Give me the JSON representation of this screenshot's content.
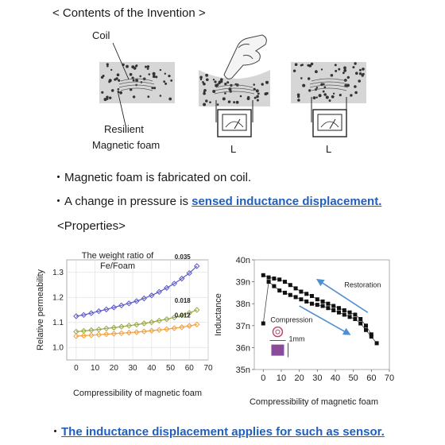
{
  "header": {
    "section_title": "< Contents of the Invention >"
  },
  "diagram": {
    "coil_label": "Coil",
    "foam_label_line1": "Resilient",
    "foam_label_line2": "Magnetic foam",
    "meter1_label": "L",
    "meter2_label": "L"
  },
  "bullets": {
    "b1": "Magnetic foam is fabricated on coil.",
    "b2_prefix": "A change in pressure is ",
    "b2_link": "sensed inductance displacement.",
    "properties_heading": "<Properties>",
    "b3_link": "The inductance displacement applies for such as sensor."
  },
  "colors": {
    "link": "#1f5fbf",
    "foam": "#d6d6d6",
    "arrow": "#4f8fcf"
  },
  "chart_data": [
    {
      "type": "line",
      "title": "The weight ratio of Fe/Foam",
      "xlabel": "Compressibility of magnetic foam",
      "ylabel": "Relative permeability",
      "xlim": [
        -5,
        70
      ],
      "ylim": [
        0.95,
        1.35
      ],
      "x_ticks": [
        "0",
        "10",
        "20",
        "30",
        "40",
        "50",
        "60",
        "70"
      ],
      "y_ticks": [
        "1.0",
        "1.1",
        "1.2",
        "1.3"
      ],
      "grid": true,
      "series": [
        {
          "name": "0.035",
          "color": "#5a5ac8",
          "x": [
            0,
            4,
            8,
            12,
            16,
            20,
            24,
            28,
            32,
            36,
            40,
            44,
            48,
            52,
            56,
            60,
            64
          ],
          "y": [
            1.125,
            1.13,
            1.137,
            1.145,
            1.152,
            1.16,
            1.168,
            1.176,
            1.185,
            1.196,
            1.208,
            1.222,
            1.238,
            1.255,
            1.275,
            1.297,
            1.325
          ]
        },
        {
          "name": "0.018",
          "color": "#9aa84a",
          "x": [
            0,
            4,
            8,
            12,
            16,
            20,
            24,
            28,
            32,
            36,
            40,
            44,
            48,
            52,
            56,
            60,
            64
          ],
          "y": [
            1.063,
            1.066,
            1.069,
            1.072,
            1.076,
            1.079,
            1.083,
            1.087,
            1.091,
            1.096,
            1.101,
            1.107,
            1.113,
            1.12,
            1.128,
            1.138,
            1.15
          ]
        },
        {
          "name": "0.012",
          "color": "#f0a040",
          "x": [
            0,
            4,
            8,
            12,
            16,
            20,
            24,
            28,
            32,
            36,
            40,
            44,
            48,
            52,
            56,
            60,
            64
          ],
          "y": [
            1.045,
            1.047,
            1.049,
            1.051,
            1.053,
            1.055,
            1.057,
            1.059,
            1.061,
            1.064,
            1.067,
            1.07,
            1.073,
            1.077,
            1.081,
            1.086,
            1.092
          ]
        }
      ]
    },
    {
      "type": "scatter",
      "xlabel": "Compressibility of magnetic foam",
      "ylabel": "Inductance",
      "xlim": [
        -5,
        70
      ],
      "ylim": [
        35,
        40
      ],
      "x_ticks": [
        "0",
        "10",
        "20",
        "30",
        "40",
        "50",
        "60",
        "70"
      ],
      "y_ticks": [
        "35n",
        "36n",
        "37n",
        "38n",
        "39n",
        "40n"
      ],
      "annotations": [
        "Restoration",
        "Compression",
        "1mm"
      ],
      "series": [
        {
          "name": "Compression",
          "color": "#111111",
          "x": [
            0,
            3,
            6,
            9,
            12,
            15,
            18,
            21,
            24,
            27,
            30,
            33,
            36,
            39,
            42,
            45,
            48,
            51,
            54,
            57,
            60,
            63
          ],
          "y": [
            37.1,
            39.0,
            38.8,
            38.6,
            38.5,
            38.4,
            38.3,
            38.2,
            38.1,
            38.0,
            37.95,
            37.9,
            37.8,
            37.7,
            37.6,
            37.5,
            37.4,
            37.3,
            37.1,
            36.8,
            36.5,
            36.2
          ]
        },
        {
          "name": "Restoration",
          "color": "#111111",
          "x": [
            0,
            3,
            6,
            9,
            12,
            15,
            18,
            21,
            24,
            27,
            30,
            33,
            36,
            39,
            42,
            45,
            48,
            51,
            54,
            57,
            60
          ],
          "y": [
            39.3,
            39.2,
            39.15,
            39.1,
            39.0,
            38.85,
            38.7,
            38.55,
            38.45,
            38.35,
            38.2,
            38.1,
            38.0,
            37.9,
            37.8,
            37.7,
            37.6,
            37.5,
            37.3,
            37.0,
            36.6
          ]
        }
      ]
    }
  ]
}
